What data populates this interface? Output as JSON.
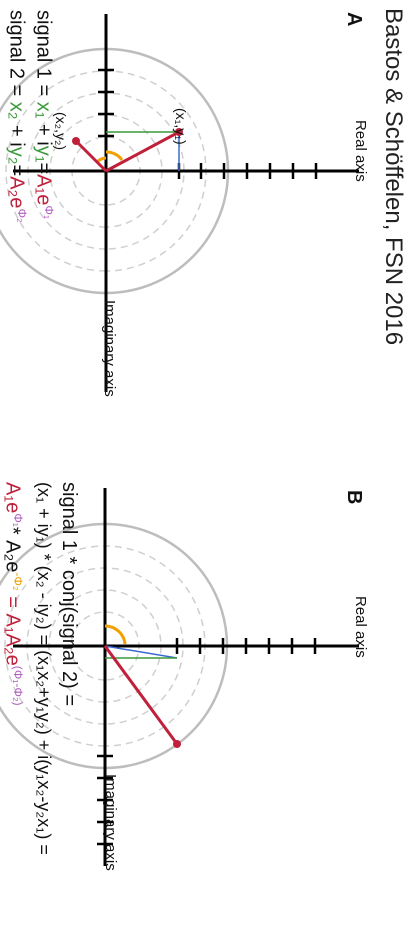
{
  "credit": "Bastos & Schöffelen, FSN 2016",
  "panel_a": {
    "letter": "A",
    "imag_axis_label": "Imaginary axis",
    "real_axis_label": "Real axis",
    "point1_label": "(x₁,y₁)",
    "point2_label": "(x₂,y₂)",
    "eq1": {
      "prefix": "signal 1 = ",
      "x_part": "x₁",
      "plus_i": " + i",
      "y_part": "y₁",
      "eq_sign": "=",
      "amp": "A₁e",
      "phase": "Φ₁"
    },
    "eq2": {
      "prefix": "signal 2 = ",
      "x_part": "x₂",
      "plus_i": " + i",
      "y_part": "y₂",
      "eq_sign": "=",
      "amp": "A₂e",
      "phase": "Φ₂"
    }
  },
  "panel_b": {
    "letter": "B",
    "imag_axis_label": "Imaginary axis",
    "real_axis_label": "Real axis",
    "line1": "signal 1 * conj(signal 2) =",
    "line2": {
      "a": "(x₁ + iy₁) * (x₂ - iy₂) = (x₁x₂+y₁y₂) + i(y₁x₂-y₂x₁) ="
    },
    "line3": {
      "a1": "A₁e",
      "p1": "Φ₁",
      "mid": "* A₂e",
      "p2": "-Φ₂",
      "eq": " = A₁A₂e",
      "p3": "(Φ₁-Φ₂)"
    }
  }
}
